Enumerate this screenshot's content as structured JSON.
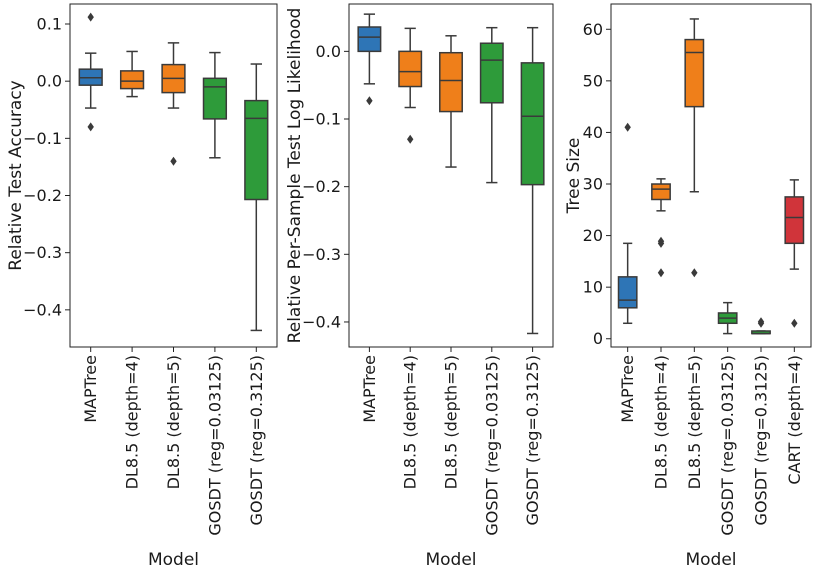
{
  "colors": {
    "blue": "#2e75b6",
    "orange": "#ef7f1a",
    "green": "#2e9b3a",
    "red": "#d0343a"
  },
  "chart_data": [
    {
      "type": "box",
      "xlabel": "Model",
      "ylabel": "Relative Test Accuracy",
      "ylim": [
        -0.465,
        0.135
      ],
      "yticks": [
        0.1,
        0.0,
        -0.1,
        -0.2,
        -0.3,
        -0.4
      ],
      "ytick_labels": [
        "0.1",
        "0.0",
        "−0.1",
        "−0.2",
        "−0.3",
        "−0.4"
      ],
      "categories": [
        "MAPTree",
        "DL8.5 (depth=4)",
        "DL8.5 (depth=5)",
        "GOSDT (reg=0.03125)",
        "GOSDT (reg=0.3125)"
      ],
      "boxes": [
        {
          "color": "blue",
          "whislo": -0.047,
          "q1": -0.007,
          "med": 0.006,
          "q3": 0.021,
          "whishi": 0.049,
          "fliers": [
            0.112,
            -0.08
          ]
        },
        {
          "color": "orange",
          "whislo": -0.027,
          "q1": -0.013,
          "med": 0.0,
          "q3": 0.018,
          "whishi": 0.052,
          "fliers": []
        },
        {
          "color": "orange",
          "whislo": -0.047,
          "q1": -0.02,
          "med": 0.005,
          "q3": 0.029,
          "whishi": 0.067,
          "fliers": [
            -0.14
          ]
        },
        {
          "color": "green",
          "whislo": -0.134,
          "q1": -0.066,
          "med": -0.01,
          "q3": 0.005,
          "whishi": 0.05,
          "fliers": []
        },
        {
          "color": "green",
          "whislo": -0.436,
          "q1": -0.207,
          "med": -0.065,
          "q3": -0.034,
          "whishi": 0.03,
          "fliers": []
        }
      ]
    },
    {
      "type": "box",
      "xlabel": "Model",
      "ylabel": "Relative Per-Sample Test Log Likelihood",
      "ylim": [
        -0.437,
        0.07
      ],
      "yticks": [
        0.0,
        -0.1,
        -0.2,
        -0.3,
        -0.4
      ],
      "ytick_labels": [
        "0.0",
        "−0.1",
        "−0.2",
        "−0.3",
        "−0.4"
      ],
      "categories": [
        "MAPTree",
        "DL8.5 (depth=4)",
        "DL8.5 (depth=5)",
        "GOSDT (reg=0.03125)",
        "GOSDT (reg=0.3125)"
      ],
      "boxes": [
        {
          "color": "blue",
          "whislo": -0.048,
          "q1": 0.0,
          "med": 0.021,
          "q3": 0.036,
          "whishi": 0.055,
          "fliers": [
            -0.073
          ]
        },
        {
          "color": "orange",
          "whislo": -0.083,
          "q1": -0.052,
          "med": -0.03,
          "q3": 0.0,
          "whishi": 0.034,
          "fliers": [
            -0.13
          ]
        },
        {
          "color": "orange",
          "whislo": -0.171,
          "q1": -0.089,
          "med": -0.043,
          "q3": -0.002,
          "whishi": 0.023,
          "fliers": []
        },
        {
          "color": "green",
          "whislo": -0.194,
          "q1": -0.076,
          "med": -0.013,
          "q3": 0.012,
          "whishi": 0.035,
          "fliers": []
        },
        {
          "color": "green",
          "whislo": -0.417,
          "q1": -0.197,
          "med": -0.096,
          "q3": -0.017,
          "whishi": 0.035,
          "fliers": []
        }
      ]
    },
    {
      "type": "box",
      "xlabel": "Model",
      "ylabel": "Tree Size",
      "ylim": [
        -1.6,
        64.9
      ],
      "yticks": [
        0,
        10,
        20,
        30,
        40,
        50,
        60
      ],
      "ytick_labels": [
        "0",
        "10",
        "20",
        "30",
        "40",
        "50",
        "60"
      ],
      "categories": [
        "MAPTree",
        "DL8.5 (depth=4)",
        "DL8.5 (depth=5)",
        "GOSDT (reg=0.03125)",
        "GOSDT (reg=0.3125)",
        "CART (depth=4)"
      ],
      "boxes": [
        {
          "color": "blue",
          "whislo": 3.0,
          "q1": 6.0,
          "med": 7.5,
          "q3": 12.0,
          "whishi": 18.5,
          "fliers": [
            41.0
          ]
        },
        {
          "color": "orange",
          "whislo": 24.8,
          "q1": 27.0,
          "med": 29.0,
          "q3": 30.0,
          "whishi": 31.0,
          "fliers": [
            18.5,
            18.9,
            12.8
          ]
        },
        {
          "color": "orange",
          "whislo": 28.5,
          "q1": 45.0,
          "med": 55.5,
          "q3": 58.0,
          "whishi": 62.0,
          "fliers": [
            12.8
          ]
        },
        {
          "color": "green",
          "whislo": 1.0,
          "q1": 3.0,
          "med": 4.0,
          "q3": 5.0,
          "whishi": 7.0,
          "fliers": []
        },
        {
          "color": "green",
          "whislo": 1.0,
          "q1": 1.0,
          "med": 1.0,
          "q3": 1.5,
          "whishi": 1.5,
          "fliers": [
            3.0,
            3.3
          ]
        },
        {
          "color": "red",
          "whislo": 13.5,
          "q1": 18.5,
          "med": 23.5,
          "q3": 27.5,
          "whishi": 30.8,
          "fliers": [
            3.0
          ]
        }
      ]
    }
  ]
}
